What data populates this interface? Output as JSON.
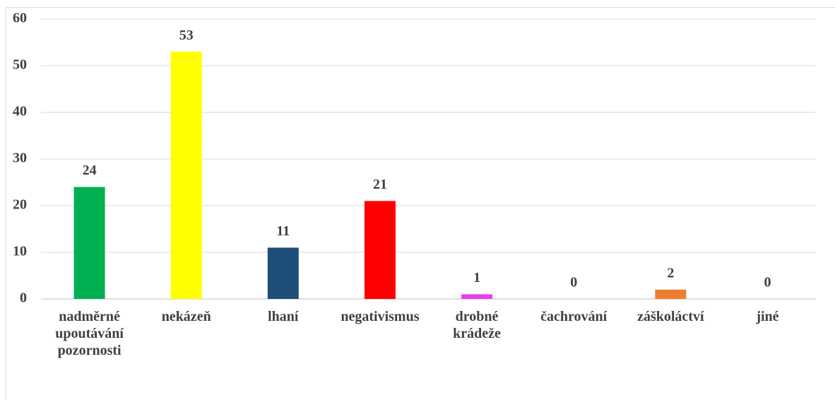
{
  "chart_data": {
    "type": "bar",
    "categories": [
      "nadměrné upoutávání pozornosti",
      "nekázeň",
      "lhaní",
      "negativismus",
      "drobné krádeže",
      "čachrování",
      "záškoláctví",
      "jiné"
    ],
    "values": [
      24,
      53,
      11,
      21,
      1,
      0,
      2,
      0
    ],
    "colors": [
      "#00b050",
      "#ffff00",
      "#1f4e79",
      "#ff0000",
      "#e840e8",
      "#a5a5a5",
      "#ed7d31",
      "#5b9bd5"
    ],
    "ylim": [
      0,
      60
    ],
    "yticks": [
      0,
      10,
      20,
      30,
      40,
      50,
      60
    ],
    "grid": true,
    "data_labels": true
  }
}
